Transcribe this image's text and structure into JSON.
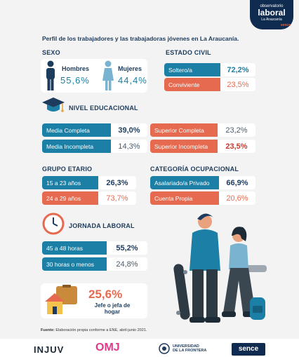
{
  "badge": {
    "line1": "observatorio",
    "line2": "laboral",
    "line3": "La Araucanía",
    "line4": "sence"
  },
  "title": "Perfil de los trabajadores y las trabajadoras jóvenes en La Araucanía.",
  "sexo": {
    "heading": "SEXO",
    "hombres": "Hombres",
    "hombres_pct": "55,6%",
    "mujeres": "Mujeres",
    "mujeres_pct": "44,4%"
  },
  "estado": {
    "heading": "ESTADO CIVIL",
    "rows": [
      {
        "label": "Soltero/a",
        "value": "72,2%"
      },
      {
        "label": "Conviviente",
        "value": "23,5%"
      }
    ]
  },
  "educ": {
    "heading": "NIVEL EDUCACIONAL",
    "rows": [
      {
        "label": "Media Completa",
        "value": "39,0%"
      },
      {
        "label": "Media Incompleta",
        "value": "14,3%"
      },
      {
        "label": "Superior Completa",
        "value": "23,2%"
      },
      {
        "label": "Superior Incompleta",
        "value": "23,5%"
      }
    ]
  },
  "grupo": {
    "heading": "GRUPO ETARIO",
    "rows": [
      {
        "label": "15 a 23 años",
        "value": "26,3%"
      },
      {
        "label": "24 a 29 años",
        "value": "73,7%"
      }
    ]
  },
  "categoria": {
    "heading": "CATEGORÍA OCUPACIONAL",
    "rows": [
      {
        "label": "Asalariado/a Privado",
        "value": "66,9%"
      },
      {
        "label": "Cuenta Propia",
        "value": "20,6%"
      }
    ]
  },
  "jornada": {
    "heading": "JORNADA LABORAL",
    "rows": [
      {
        "label": "45 a 48 horas",
        "value": "55,2%"
      },
      {
        "label": "30 horas o menos",
        "value": "24,8%"
      }
    ]
  },
  "jefe": {
    "pct": "25,6%",
    "line1": "Jefe o jefa de",
    "line2": "hogar"
  },
  "footer": {
    "bold": "Fuente:",
    "text": " Elaboración propia conforme a ENE, abril-junio 2021."
  },
  "logos": {
    "injuv": "INJUV",
    "omj": "OMJ",
    "ufro1": "UNIVERSIDAD",
    "ufro2": "DE LA FRONTERA",
    "sence": "sence"
  }
}
